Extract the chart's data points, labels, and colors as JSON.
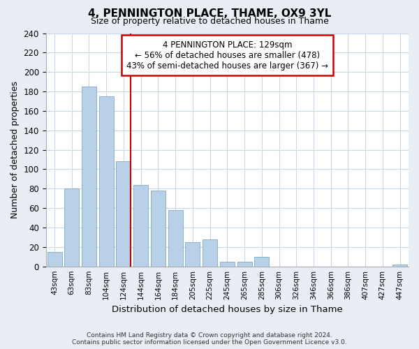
{
  "title": "4, PENNINGTON PLACE, THAME, OX9 3YL",
  "subtitle": "Size of property relative to detached houses in Thame",
  "xlabel": "Distribution of detached houses by size in Thame",
  "ylabel": "Number of detached properties",
  "bar_labels": [
    "43sqm",
    "63sqm",
    "83sqm",
    "104sqm",
    "124sqm",
    "144sqm",
    "164sqm",
    "184sqm",
    "205sqm",
    "225sqm",
    "245sqm",
    "265sqm",
    "285sqm",
    "306sqm",
    "326sqm",
    "346sqm",
    "366sqm",
    "386sqm",
    "407sqm",
    "427sqm",
    "447sqm"
  ],
  "bar_values": [
    15,
    80,
    185,
    175,
    108,
    84,
    78,
    58,
    25,
    28,
    5,
    5,
    10,
    0,
    0,
    0,
    0,
    0,
    0,
    0,
    2
  ],
  "bar_color": "#b8d0e8",
  "bar_edge_color": "#8ab0d0",
  "vline_color": "#cc0000",
  "vline_bar_index": 4,
  "annotation_line1": "4 PENNINGTON PLACE: 129sqm",
  "annotation_line2": "← 56% of detached houses are smaller (478)",
  "annotation_line3": "43% of semi-detached houses are larger (367) →",
  "annotation_box_color": "#ffffff",
  "annotation_box_edge": "#cc0000",
  "ylim": [
    0,
    240
  ],
  "yticks": [
    0,
    20,
    40,
    60,
    80,
    100,
    120,
    140,
    160,
    180,
    200,
    220,
    240
  ],
  "footer_line1": "Contains HM Land Registry data © Crown copyright and database right 2024.",
  "footer_line2": "Contains public sector information licensed under the Open Government Licence v3.0.",
  "bg_color": "#e8eef4",
  "plot_bg_color": "#ffffff",
  "grid_color": "#c8d8e8"
}
